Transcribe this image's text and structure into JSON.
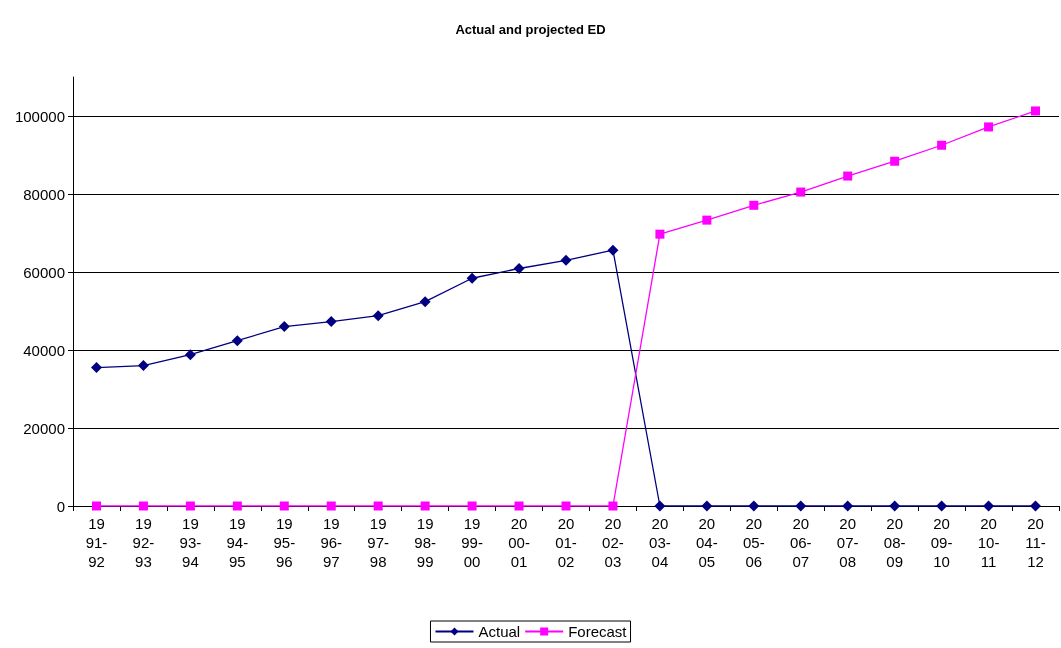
{
  "chart_data": {
    "type": "line",
    "title": "Actual and projected ED",
    "categories": [
      "1991-92",
      "1992-93",
      "1993-94",
      "1994-95",
      "1995-96",
      "1996-97",
      "1997-98",
      "1998-99",
      "1999-00",
      "2000-01",
      "2001-02",
      "2002-03",
      "2003-04",
      "2004-05",
      "2005-06",
      "2006-07",
      "2007-08",
      "2008-09",
      "2009-10",
      "2010-11",
      "2011-12"
    ],
    "series": [
      {
        "name": "Actual",
        "color": "#000080",
        "marker": "diamond",
        "values": [
          35500,
          36000,
          38800,
          42400,
          46000,
          47300,
          48800,
          52400,
          58400,
          60900,
          63000,
          65600,
          0,
          0,
          0,
          0,
          0,
          0,
          0,
          0,
          0
        ]
      },
      {
        "name": "Forecast",
        "color": "#ff00ff",
        "marker": "square",
        "values": [
          0,
          0,
          0,
          0,
          0,
          0,
          0,
          0,
          0,
          0,
          0,
          0,
          69700,
          73300,
          77100,
          80500,
          84600,
          88400,
          92500,
          97200,
          101300
        ]
      }
    ],
    "ylim": [
      0,
      110000
    ],
    "yticks": [
      0,
      20000,
      40000,
      60000,
      80000,
      100000
    ],
    "grid": "y",
    "legend": "bottom",
    "line_style": "solid"
  }
}
